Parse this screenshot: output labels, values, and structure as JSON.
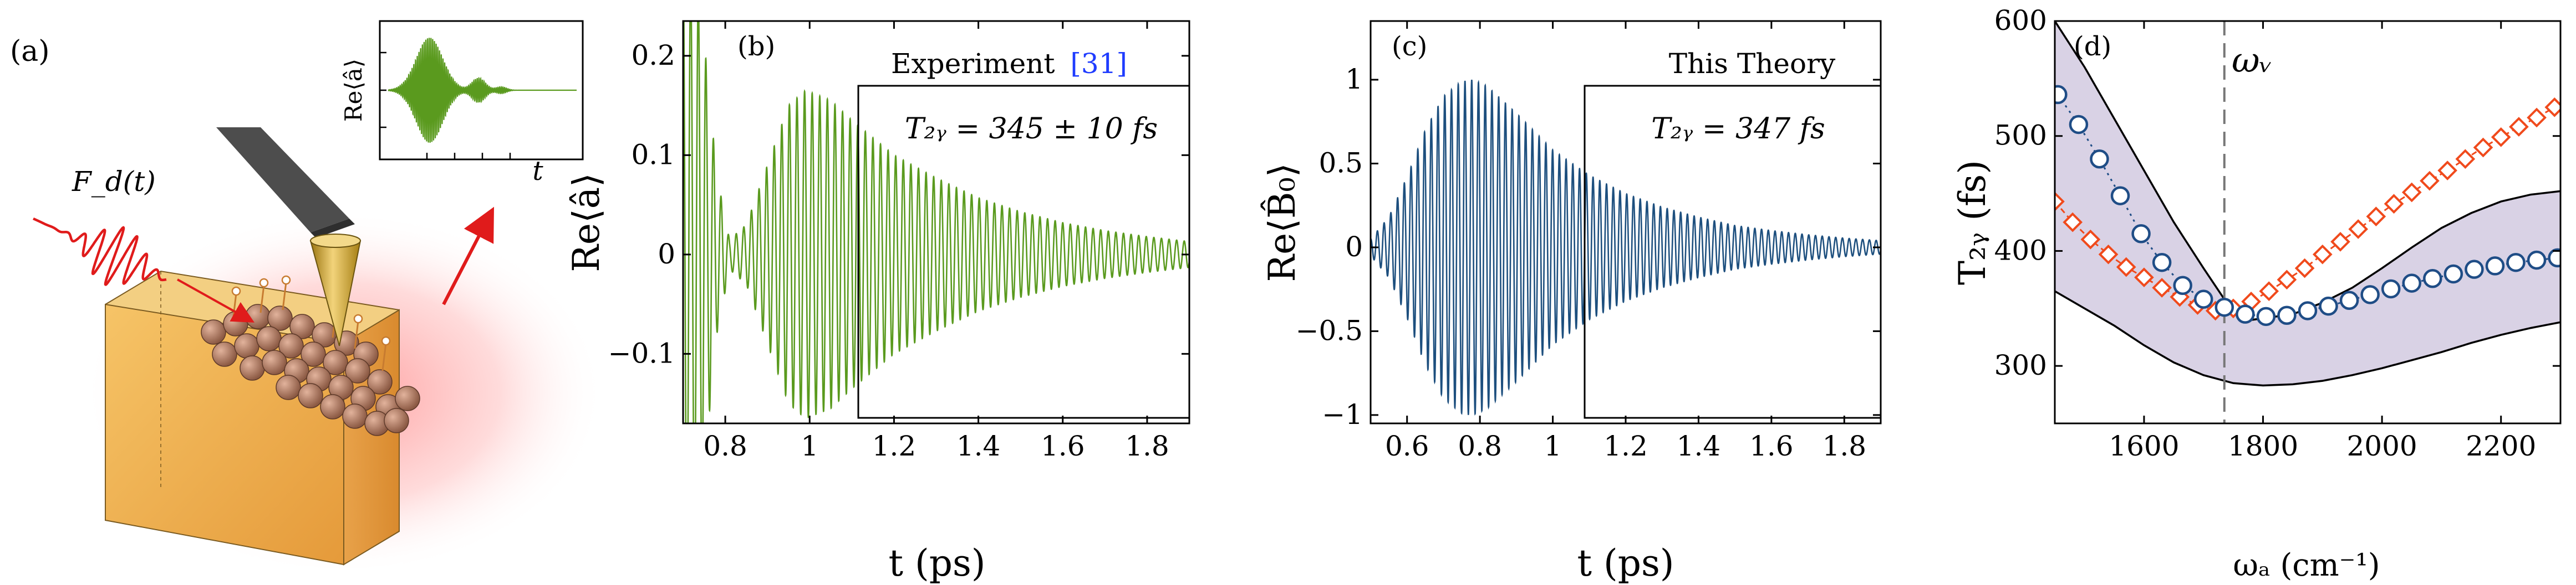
{
  "panel_a": {
    "label": "(a)",
    "force_label": "F_d(t)",
    "inset": {
      "ylabel": "Re⟨â⟩",
      "xlabel": "t"
    }
  },
  "panel_b": {
    "label": "(b)",
    "legend_text": "Experiment",
    "legend_ref": "[31]",
    "t2_text": "T₂ᵧ = 345 ± 10 fs",
    "xlabel": "t (ps)",
    "ylabel": "Re⟨â⟩"
  },
  "panel_c": {
    "label": "(c)",
    "legend_text": "This Theory",
    "t2_text": "T₂ᵧ = 347 fs",
    "xlabel": "t (ps)",
    "ylabel": "Re⟨B̂₀⟩"
  },
  "panel_d": {
    "label": "(d)",
    "vline_label": "ωᵥ",
    "xlabel": "ωₐ (cm⁻¹)",
    "ylabel": "T₂ᵧ (fs)"
  },
  "colors": {
    "green": "#5a9a1e",
    "blue": "#1d4f7e",
    "orange": "#f04a1c",
    "circle_edge": "#1f4d86",
    "band": "#d9d2e5",
    "ref_blue": "#1f3cff",
    "red": "#e01b1b"
  },
  "chart_data": [
    {
      "id": "b",
      "type": "line",
      "series": [
        {
          "name": "Experiment",
          "kind": "damped-oscillation",
          "t0": 0.7,
          "t1": 1.9,
          "period_ps": 0.018,
          "envelope": [
            [
              0.7,
              0.3
            ],
            [
              0.74,
              0.26
            ],
            [
              0.78,
              0.08
            ],
            [
              0.81,
              0.015
            ],
            [
              0.85,
              0.03
            ],
            [
              0.9,
              0.09
            ],
            [
              0.95,
              0.15
            ],
            [
              0.99,
              0.165
            ],
            [
              1.05,
              0.155
            ],
            [
              1.1,
              0.135
            ],
            [
              1.2,
              0.1
            ],
            [
              1.3,
              0.077
            ],
            [
              1.4,
              0.057
            ],
            [
              1.5,
              0.043
            ],
            [
              1.6,
              0.032
            ],
            [
              1.7,
              0.024
            ],
            [
              1.8,
              0.018
            ],
            [
              1.9,
              0.013
            ]
          ]
        }
      ],
      "xlim": [
        0.7,
        1.9
      ],
      "ylim": [
        -0.17,
        0.235
      ],
      "xticks": [
        0.8,
        1.0,
        1.2,
        1.4,
        1.6,
        1.8
      ],
      "xticklabels": [
        "0.8",
        "1",
        "1.2",
        "1.4",
        "1.6",
        "1.8"
      ],
      "yticks": [
        -0.1,
        0,
        0.1,
        0.2
      ],
      "yticklabels": [
        "−0.1",
        "0",
        "0.1",
        "0.2"
      ],
      "xlabel": "t (ps)",
      "ylabel": "Re⟨â⟩"
    },
    {
      "id": "c",
      "type": "line",
      "series": [
        {
          "name": "This Theory",
          "kind": "damped-oscillation",
          "t0": 0.5,
          "t1": 1.9,
          "period_ps": 0.0185,
          "envelope": [
            [
              0.5,
              0.05
            ],
            [
              0.55,
              0.18
            ],
            [
              0.6,
              0.42
            ],
            [
              0.65,
              0.7
            ],
            [
              0.7,
              0.9
            ],
            [
              0.75,
              0.99
            ],
            [
              0.78,
              1.0
            ],
            [
              0.82,
              0.96
            ],
            [
              0.9,
              0.8
            ],
            [
              1.0,
              0.58
            ],
            [
              1.1,
              0.43
            ],
            [
              1.2,
              0.32
            ],
            [
              1.3,
              0.24
            ],
            [
              1.4,
              0.18
            ],
            [
              1.5,
              0.13
            ],
            [
              1.6,
              0.1
            ],
            [
              1.7,
              0.075
            ],
            [
              1.8,
              0.055
            ],
            [
              1.9,
              0.04
            ]
          ]
        }
      ],
      "xlim": [
        0.5,
        1.9
      ],
      "ylim": [
        -1.05,
        1.35
      ],
      "xticks": [
        0.6,
        0.8,
        1.0,
        1.2,
        1.4,
        1.6,
        1.8
      ],
      "xticklabels": [
        "0.6",
        "0.8",
        "1",
        "1.2",
        "1.4",
        "1.6",
        "1.8"
      ],
      "yticks": [
        -1,
        -0.5,
        0,
        0.5,
        1
      ],
      "yticklabels": [
        "−1",
        "−0.5",
        "0",
        "0.5",
        "1"
      ],
      "xlabel": "t (ps)",
      "ylabel": "Re⟨B̂₀⟩"
    },
    {
      "id": "d",
      "type": "scatter",
      "xlim": [
        1450,
        2300
      ],
      "ylim": [
        250,
        600
      ],
      "xticks": [
        1600,
        1800,
        2000,
        2200
      ],
      "yticks": [
        300,
        400,
        500,
        600
      ],
      "vline": 1735,
      "band_upper": [
        [
          1450,
          600
        ],
        [
          1500,
          560
        ],
        [
          1550,
          515
        ],
        [
          1600,
          470
        ],
        [
          1650,
          425
        ],
        [
          1700,
          385
        ],
        [
          1735,
          358
        ],
        [
          1780,
          340
        ],
        [
          1850,
          345
        ],
        [
          1900,
          355
        ],
        [
          1950,
          368
        ],
        [
          2000,
          385
        ],
        [
          2050,
          403
        ],
        [
          2100,
          420
        ],
        [
          2150,
          433
        ],
        [
          2200,
          443
        ],
        [
          2250,
          449
        ],
        [
          2300,
          452
        ]
      ],
      "band_lower": [
        [
          1450,
          365
        ],
        [
          1500,
          350
        ],
        [
          1550,
          335
        ],
        [
          1600,
          318
        ],
        [
          1650,
          303
        ],
        [
          1700,
          292
        ],
        [
          1750,
          285
        ],
        [
          1800,
          283
        ],
        [
          1850,
          284
        ],
        [
          1900,
          287
        ],
        [
          1950,
          292
        ],
        [
          2000,
          298
        ],
        [
          2050,
          305
        ],
        [
          2100,
          312
        ],
        [
          2150,
          320
        ],
        [
          2200,
          327
        ],
        [
          2250,
          333
        ],
        [
          2300,
          338
        ]
      ],
      "series": [
        {
          "name": "circles",
          "marker": "circle",
          "x": [
            1455,
            1490,
            1525,
            1560,
            1595,
            1630,
            1665,
            1700,
            1735,
            1770,
            1805,
            1840,
            1875,
            1910,
            1945,
            1980,
            2015,
            2050,
            2085,
            2120,
            2155,
            2190,
            2225,
            2260,
            2295
          ],
          "y": [
            536,
            510,
            480,
            448,
            415,
            390,
            370,
            358,
            351,
            345,
            343,
            344,
            348,
            352,
            357,
            362,
            367,
            372,
            376,
            380,
            384,
            387,
            390,
            392,
            394
          ]
        },
        {
          "name": "diamonds",
          "marker": "diamond",
          "x": [
            1450,
            1480,
            1510,
            1540,
            1570,
            1600,
            1630,
            1660,
            1690,
            1720,
            1750,
            1780,
            1810,
            1840,
            1870,
            1900,
            1930,
            1960,
            1990,
            2020,
            2050,
            2080,
            2110,
            2140,
            2170,
            2200,
            2230,
            2260,
            2290
          ],
          "y": [
            443,
            425,
            410,
            397,
            386,
            377,
            368,
            360,
            353,
            348,
            350,
            356,
            365,
            375,
            385,
            397,
            408,
            419,
            430,
            441,
            451,
            461,
            470,
            480,
            490,
            499,
            508,
            516,
            525
          ]
        }
      ],
      "xlabel": "ωₐ (cm⁻¹)",
      "ylabel": "T₂ᵧ (fs)"
    }
  ]
}
